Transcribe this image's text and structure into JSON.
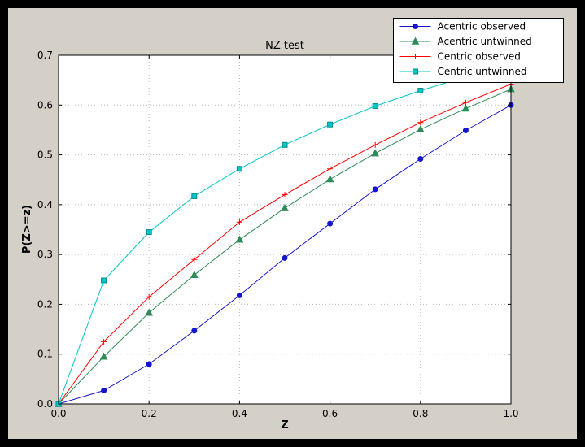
{
  "chart_data": {
    "type": "line",
    "title": "NZ test",
    "xlabel": "Z",
    "ylabel": "P(Z>=z)",
    "xlim": [
      0.0,
      1.0
    ],
    "ylim": [
      0.0,
      0.7
    ],
    "xticks": [
      0.0,
      0.2,
      0.4,
      0.6,
      0.8,
      1.0
    ],
    "yticks": [
      0.0,
      0.1,
      0.2,
      0.3,
      0.4,
      0.5,
      0.6,
      0.7
    ],
    "grid": true,
    "legend_position": "upper-right",
    "x": [
      0.0,
      0.1,
      0.2,
      0.3,
      0.4,
      0.5,
      0.6,
      0.7,
      0.8,
      0.9,
      1.0
    ],
    "series": [
      {
        "name": "Acentric observed",
        "color": "#1515cc",
        "marker": "circle",
        "values": [
          0.0,
          0.027,
          0.08,
          0.147,
          0.218,
          0.293,
          0.362,
          0.431,
          0.492,
          0.549,
          0.6
        ]
      },
      {
        "name": "Acentric untwinned",
        "color": "#2e8b57",
        "marker": "triangle",
        "values": [
          0.0,
          0.095,
          0.183,
          0.259,
          0.33,
          0.393,
          0.451,
          0.503,
          0.551,
          0.593,
          0.632
        ]
      },
      {
        "name": "Centric observed",
        "color": "#ff0000",
        "marker": "plus",
        "values": [
          0.0,
          0.125,
          0.215,
          0.29,
          0.365,
          0.42,
          0.472,
          0.52,
          0.565,
          0.605,
          0.642
        ]
      },
      {
        "name": "Centric untwinned",
        "color": "#00c5c5",
        "marker": "square",
        "marker_edge": "#009090",
        "values": [
          0.0,
          0.248,
          0.345,
          0.417,
          0.472,
          0.52,
          0.561,
          0.598,
          0.629,
          0.657,
          0.683
        ]
      }
    ],
    "colors": {
      "window_bg": "#000000",
      "figure_bg": "#d4d0c8",
      "plot_bg": "#ffffff",
      "grid": "#b8b8b8",
      "axis": "#000000",
      "legend_bg": "#ffffff",
      "legend_border": "#000000"
    }
  }
}
